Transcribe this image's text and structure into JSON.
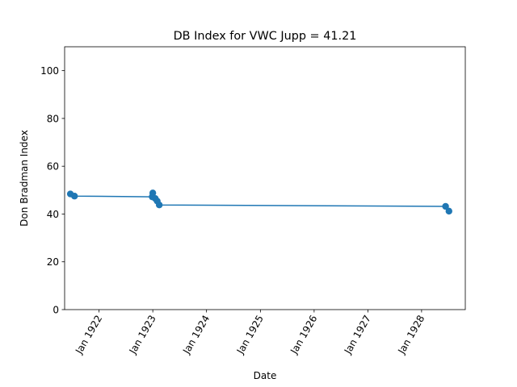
{
  "chart_data": {
    "type": "line",
    "title": "DB Index for VWC Jupp = 41.21",
    "xlabel": "Date",
    "ylabel": "Don Bradman Index",
    "ylim": [
      0,
      110
    ],
    "xlim": [
      "1921-05-12",
      "1928-10-24"
    ],
    "y_ticks": [
      0,
      20,
      40,
      60,
      80,
      100
    ],
    "x_ticks": [
      {
        "date": "1922-01-01",
        "label": "Jan 1922"
      },
      {
        "date": "1923-01-01",
        "label": "Jan 1923"
      },
      {
        "date": "1924-01-01",
        "label": "Jan 1924"
      },
      {
        "date": "1925-01-01",
        "label": "Jan 1925"
      },
      {
        "date": "1926-01-01",
        "label": "Jan 1926"
      },
      {
        "date": "1927-01-01",
        "label": "Jan 1927"
      },
      {
        "date": "1928-01-01",
        "label": "Jan 1928"
      }
    ],
    "grid": false,
    "series": [
      {
        "color": "#1f77b4",
        "points": [
          {
            "x": "1921-06-20",
            "y": 48.4
          },
          {
            "x": "1921-07-18",
            "y": 47.5
          },
          {
            "x": "1922-12-28",
            "y": 47.2
          },
          {
            "x": "1923-01-01",
            "y": 48.8
          },
          {
            "x": "1923-01-18",
            "y": 46.5
          },
          {
            "x": "1923-01-31",
            "y": 45.4
          },
          {
            "x": "1923-02-14",
            "y": 43.8
          },
          {
            "x": "1928-06-12",
            "y": 43.2
          },
          {
            "x": "1928-07-05",
            "y": 41.21
          }
        ]
      }
    ]
  }
}
